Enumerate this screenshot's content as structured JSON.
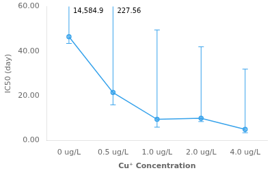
{
  "chart_data": {
    "type": "line",
    "xlabel": "Cu⁺ Concentration",
    "ylabel": "IC50 (day)",
    "categories": [
      "0 ug/L",
      "0.5 ug/L",
      "1.0 ug/L",
      "2.0 ug/L",
      "4.0 ug/L"
    ],
    "values": [
      46.5,
      21.5,
      9.5,
      10.0,
      5.0
    ],
    "error_lower": [
      3.0,
      5.5,
      3.5,
      1.5,
      1.5
    ],
    "error_upper": [
      14538.4,
      206.06,
      40.0,
      32.0,
      27.0
    ],
    "annotations": [
      {
        "text": "14,584.9",
        "category": "0 ug/L",
        "y": 59.5
      },
      {
        "text": "227.56",
        "category": "0.5 ug/L",
        "y": 59.5
      }
    ],
    "ylim": [
      0.0,
      60.0
    ],
    "yticks": [
      {
        "value": 0.0,
        "label": "0.00"
      },
      {
        "value": 20.0,
        "label": "20.00"
      },
      {
        "value": 40.0,
        "label": "40.00"
      },
      {
        "value": 60.0,
        "label": "60.00"
      }
    ],
    "grid": false
  }
}
